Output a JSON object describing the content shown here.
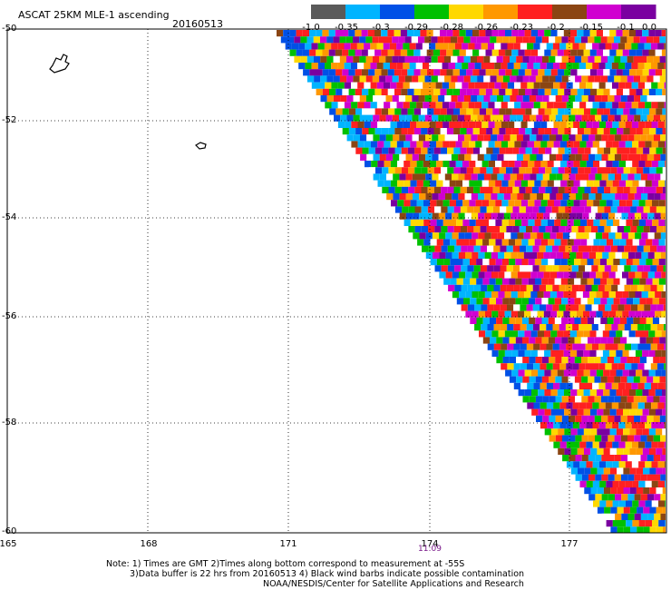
{
  "title": "ASCAT 25KM MLE-1 ascending",
  "date": "20160513",
  "colorbar": {
    "labels": [
      "-1.0",
      "-0.35",
      "-0.3",
      "-0.29",
      "-0.28",
      "-0.26",
      "-0.23",
      "-0.2",
      "-0.15",
      "-0.1",
      "0.0"
    ],
    "colors": [
      "#5a5a5a",
      "#00b4ff",
      "#0050e6",
      "#00c000",
      "#ffd800",
      "#ff9800",
      "#ff2020",
      "#8b4513",
      "#d000d0",
      "#7a00a0"
    ]
  },
  "axes": {
    "lat_labels": [
      "-50",
      "-52",
      "-54",
      "-56",
      "-58",
      "-60"
    ],
    "lon_labels": [
      "165",
      "168",
      "171",
      "174",
      "177"
    ]
  },
  "time_label": "11:09",
  "notes": [
    "Note: 1) Times are GMT 2)Times along bottom correspond to measurement at -55S",
    "3)Data buffer is 22 hrs from 20160513 4) Black wind barbs indicate possible contamination",
    "NOAA/NESDIS/Center for Satellite Applications and Research"
  ],
  "map_features": [
    "auckland-islands-outline",
    "campbell-island-outline"
  ]
}
